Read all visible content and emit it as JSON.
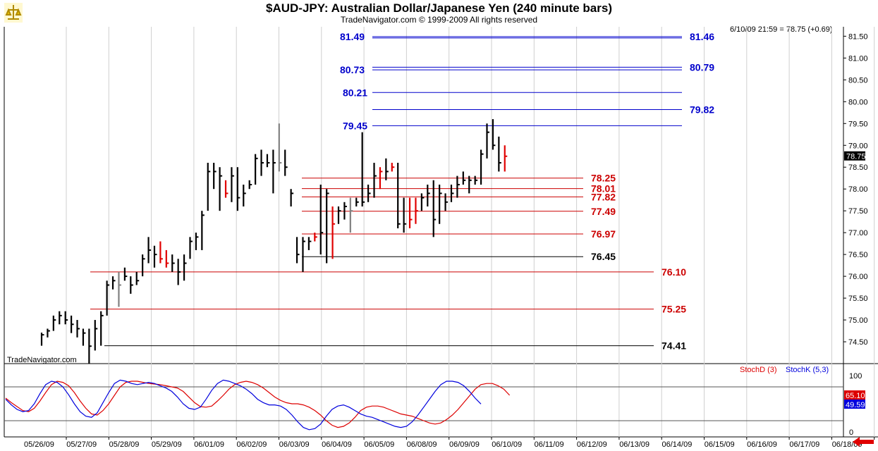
{
  "title": "$AUD-JPY:  Australian Dollar/Japanese Yen  (240 minute bars)",
  "copyright": "TradeNavigator.com © 1999-2009 All rights reserved",
  "last_readout": "6/10/09 21:59 = 78.75 (+0.69)",
  "watermark": "TradeNavigator.com",
  "colors": {
    "up_bar": "#000000",
    "down_bar": "#e00000",
    "neutral_bar": "#808080",
    "blue_level": "#0000cc",
    "red_level": "#cc0000",
    "black_level": "#000000",
    "stoch_d": "#dd0000",
    "stoch_k": "#0000dd"
  },
  "chart_data": [
    {
      "type": "ohlc",
      "title": "$AUD-JPY:  Australian Dollar/Japanese Yen  (240 minute bars)",
      "ylim": [
        74.1,
        81.8
      ],
      "y_ticks": [
        "74.50",
        "75.00",
        "75.50",
        "76.00",
        "76.50",
        "77.00",
        "77.50",
        "78.00",
        "78.50",
        "79.00",
        "79.50",
        "80.00",
        "80.50",
        "81.00",
        "81.50"
      ],
      "x_tick_labels": [
        "05/26/09",
        "05/27/09",
        "05/28/09",
        "05/29/09",
        "06/01/09",
        "06/02/09",
        "06/03/09",
        "06/04/09",
        "06/05/09",
        "06/08/09",
        "06/09/09",
        "06/10/09",
        "06/11/09",
        "06/12/09",
        "06/13/09",
        "06/14/09",
        "06/15/09",
        "06/16/09",
        "06/17/09",
        "06/18/09"
      ],
      "last_price_label": "78.75",
      "bars": [
        {
          "h": 74.71,
          "l": 74.41,
          "c": 74.66,
          "k": "up"
        },
        {
          "h": 74.8,
          "l": 74.6,
          "c": 74.75,
          "k": "up"
        },
        {
          "h": 75.1,
          "l": 74.75,
          "c": 75.0,
          "k": "up"
        },
        {
          "h": 75.2,
          "l": 74.9,
          "c": 75.1,
          "k": "up"
        },
        {
          "h": 75.2,
          "l": 74.9,
          "c": 75.0,
          "k": "up"
        },
        {
          "h": 75.1,
          "l": 74.7,
          "c": 74.9,
          "k": "up"
        },
        {
          "h": 75.0,
          "l": 74.6,
          "c": 74.8,
          "k": "up"
        },
        {
          "h": 74.8,
          "l": 74.41,
          "c": 74.7,
          "k": "up"
        },
        {
          "h": 74.8,
          "l": 74.0,
          "c": 74.4,
          "k": "up"
        },
        {
          "h": 75.0,
          "l": 74.3,
          "c": 74.8,
          "k": "up"
        },
        {
          "h": 75.2,
          "l": 74.41,
          "c": 75.1,
          "k": "up"
        },
        {
          "h": 75.9,
          "l": 75.1,
          "c": 75.8,
          "k": "up"
        },
        {
          "h": 76.0,
          "l": 75.7,
          "c": 75.9,
          "k": "up"
        },
        {
          "h": 76.1,
          "l": 75.3,
          "c": 75.8,
          "k": "neutral"
        },
        {
          "h": 76.2,
          "l": 75.9,
          "c": 76.0,
          "k": "up"
        },
        {
          "h": 76.0,
          "l": 75.6,
          "c": 75.8,
          "k": "up"
        },
        {
          "h": 76.1,
          "l": 75.8,
          "c": 75.9,
          "k": "up"
        },
        {
          "h": 76.5,
          "l": 76.0,
          "c": 76.4,
          "k": "up"
        },
        {
          "h": 76.9,
          "l": 76.3,
          "c": 76.6,
          "k": "up"
        },
        {
          "h": 76.7,
          "l": 76.2,
          "c": 76.5,
          "k": "up"
        },
        {
          "h": 76.8,
          "l": 76.3,
          "c": 76.4,
          "k": "down"
        },
        {
          "h": 76.6,
          "l": 76.2,
          "c": 76.3,
          "k": "down"
        },
        {
          "h": 76.5,
          "l": 76.1,
          "c": 76.3,
          "k": "up"
        },
        {
          "h": 76.4,
          "l": 75.8,
          "c": 76.1,
          "k": "up"
        },
        {
          "h": 76.5,
          "l": 75.9,
          "c": 76.3,
          "k": "up"
        },
        {
          "h": 76.9,
          "l": 76.4,
          "c": 76.8,
          "k": "up"
        },
        {
          "h": 77.0,
          "l": 76.6,
          "c": 76.9,
          "k": "up"
        },
        {
          "h": 77.5,
          "l": 76.6,
          "c": 77.4,
          "k": "up"
        },
        {
          "h": 78.6,
          "l": 77.5,
          "c": 78.4,
          "k": "up"
        },
        {
          "h": 78.6,
          "l": 78.0,
          "c": 78.4,
          "k": "up"
        },
        {
          "h": 78.5,
          "l": 77.5,
          "c": 78.3,
          "k": "up"
        },
        {
          "h": 78.2,
          "l": 77.8,
          "c": 77.9,
          "k": "down"
        },
        {
          "h": 78.5,
          "l": 77.7,
          "c": 78.3,
          "k": "up"
        },
        {
          "h": 78.5,
          "l": 77.5,
          "c": 77.8,
          "k": "up"
        },
        {
          "h": 78.1,
          "l": 77.6,
          "c": 77.9,
          "k": "up"
        },
        {
          "h": 78.2,
          "l": 78.0,
          "c": 78.1,
          "k": "up"
        },
        {
          "h": 78.8,
          "l": 78.1,
          "c": 78.7,
          "k": "up"
        },
        {
          "h": 78.9,
          "l": 78.3,
          "c": 78.6,
          "k": "up"
        },
        {
          "h": 78.8,
          "l": 78.5,
          "c": 78.6,
          "k": "up"
        },
        {
          "h": 78.9,
          "l": 77.9,
          "c": 78.6,
          "k": "up"
        },
        {
          "h": 79.5,
          "l": 78.4,
          "c": 78.6,
          "k": "neutral"
        },
        {
          "h": 78.9,
          "l": 78.3,
          "c": 78.5,
          "k": "up"
        },
        {
          "h": 78.0,
          "l": 77.6,
          "c": 77.9,
          "k": "up"
        },
        {
          "h": 76.9,
          "l": 76.3,
          "c": 76.5,
          "k": "up"
        },
        {
          "h": 76.9,
          "l": 76.1,
          "c": 76.8,
          "k": "up"
        },
        {
          "h": 76.9,
          "l": 76.6,
          "c": 76.8,
          "k": "up"
        },
        {
          "h": 77.0,
          "l": 76.8,
          "c": 76.9,
          "k": "down"
        },
        {
          "h": 78.1,
          "l": 76.5,
          "c": 77.0,
          "k": "up"
        },
        {
          "h": 78.0,
          "l": 76.3,
          "c": 77.9,
          "k": "up"
        },
        {
          "h": 77.6,
          "l": 76.4,
          "c": 77.2,
          "k": "down"
        },
        {
          "h": 77.6,
          "l": 77.2,
          "c": 77.5,
          "k": "up"
        },
        {
          "h": 77.7,
          "l": 77.3,
          "c": 77.6,
          "k": "up"
        },
        {
          "h": 77.8,
          "l": 77.0,
          "c": 77.5,
          "k": "neutral"
        },
        {
          "h": 77.8,
          "l": 77.6,
          "c": 77.7,
          "k": "up"
        },
        {
          "h": 79.3,
          "l": 77.6,
          "c": 77.7,
          "k": "up"
        },
        {
          "h": 78.1,
          "l": 77.7,
          "c": 77.9,
          "k": "up"
        },
        {
          "h": 78.6,
          "l": 77.8,
          "c": 78.3,
          "k": "up"
        },
        {
          "h": 78.5,
          "l": 78.0,
          "c": 78.4,
          "k": "down"
        },
        {
          "h": 78.7,
          "l": 78.2,
          "c": 78.4,
          "k": "up"
        },
        {
          "h": 78.6,
          "l": 78.4,
          "c": 78.5,
          "k": "down"
        },
        {
          "h": 78.6,
          "l": 77.1,
          "c": 77.2,
          "k": "up"
        },
        {
          "h": 77.8,
          "l": 77.0,
          "c": 77.2,
          "k": "up"
        },
        {
          "h": 77.8,
          "l": 77.1,
          "c": 77.3,
          "k": "down"
        },
        {
          "h": 77.8,
          "l": 77.2,
          "c": 77.5,
          "k": "down"
        },
        {
          "h": 77.9,
          "l": 77.5,
          "c": 77.8,
          "k": "up"
        },
        {
          "h": 78.1,
          "l": 77.6,
          "c": 77.9,
          "k": "up"
        },
        {
          "h": 78.2,
          "l": 76.9,
          "c": 77.3,
          "k": "up"
        },
        {
          "h": 78.1,
          "l": 77.2,
          "c": 77.9,
          "k": "up"
        },
        {
          "h": 77.9,
          "l": 77.5,
          "c": 77.7,
          "k": "up"
        },
        {
          "h": 78.1,
          "l": 77.7,
          "c": 77.9,
          "k": "up"
        },
        {
          "h": 78.3,
          "l": 77.8,
          "c": 78.1,
          "k": "up"
        },
        {
          "h": 78.4,
          "l": 78.1,
          "c": 78.2,
          "k": "up"
        },
        {
          "h": 78.3,
          "l": 77.9,
          "c": 78.2,
          "k": "up"
        },
        {
          "h": 78.3,
          "l": 78.1,
          "c": 78.2,
          "k": "up"
        },
        {
          "h": 78.9,
          "l": 78.1,
          "c": 78.8,
          "k": "up"
        },
        {
          "h": 79.5,
          "l": 78.7,
          "c": 79.3,
          "k": "up"
        },
        {
          "h": 79.6,
          "l": 78.9,
          "c": 79.0,
          "k": "up"
        },
        {
          "h": 79.2,
          "l": 78.4,
          "c": 78.6,
          "k": "up"
        },
        {
          "h": 79.0,
          "l": 78.4,
          "c": 78.75,
          "k": "down"
        }
      ],
      "levels": [
        {
          "value": 81.49,
          "label_left": "81.49",
          "label_right": "81.46",
          "color": "blue",
          "span": "wide"
        },
        {
          "value": 81.46,
          "label_left": "",
          "label_right": "",
          "color": "blue",
          "span": "wide"
        },
        {
          "value": 80.79,
          "label_left": "",
          "label_right": "80.79",
          "color": "blue",
          "span": "wide"
        },
        {
          "value": 80.73,
          "label_left": "80.73",
          "label_right": "",
          "color": "blue",
          "span": "wide"
        },
        {
          "value": 80.21,
          "label_left": "80.21",
          "label_right": "",
          "color": "blue",
          "span": "mid"
        },
        {
          "value": 79.82,
          "label_left": "",
          "label_right": "79.82",
          "color": "blue",
          "span": "mid"
        },
        {
          "value": 79.45,
          "label_left": "79.45",
          "label_right": "",
          "color": "blue",
          "span": "mid"
        },
        {
          "value": 78.25,
          "label_left": "",
          "label_right": "78.25",
          "color": "red",
          "span": "narrow"
        },
        {
          "value": 78.01,
          "label_left": "",
          "label_right": "78.01",
          "color": "red",
          "span": "narrow"
        },
        {
          "value": 77.82,
          "label_left": "",
          "label_right": "77.82",
          "color": "red",
          "span": "narrow"
        },
        {
          "value": 77.49,
          "label_left": "",
          "label_right": "77.49",
          "color": "red",
          "span": "narrow"
        },
        {
          "value": 76.97,
          "label_left": "",
          "label_right": "76.97",
          "color": "red",
          "span": "narrow"
        },
        {
          "value": 76.45,
          "label_left": "",
          "label_right": "76.45",
          "color": "black",
          "span": "narrow"
        },
        {
          "value": 76.1,
          "label_left": "",
          "label_right": "76.10",
          "color": "red",
          "span": "long"
        },
        {
          "value": 75.25,
          "label_left": "",
          "label_right": "75.25",
          "color": "red",
          "span": "long"
        },
        {
          "value": 74.41,
          "label_left": "",
          "label_right": "74.41",
          "color": "black",
          "span": "long2"
        }
      ]
    },
    {
      "type": "line",
      "ylim": [
        -10,
        110
      ],
      "y_ticks": [
        "0",
        "100"
      ],
      "reference_lines": [
        20,
        80
      ],
      "series": [
        {
          "name": "StochD (3)",
          "color": "#dd0000",
          "last_label": "65.10",
          "values": [
            60,
            52,
            45,
            38,
            36,
            42,
            55,
            70,
            84,
            90,
            88,
            82,
            70,
            55,
            42,
            32,
            30,
            38,
            50,
            65,
            80,
            88,
            90,
            90,
            88,
            86,
            85,
            84,
            82,
            80,
            78,
            72,
            62,
            52,
            45,
            44,
            46,
            55,
            65,
            76,
            84,
            88,
            90,
            88,
            84,
            78,
            70,
            62,
            56,
            52,
            50,
            50,
            48,
            44,
            38,
            30,
            20,
            12,
            8,
            10,
            16,
            26,
            38,
            44,
            46,
            46,
            44,
            40,
            36,
            32,
            30,
            28,
            24,
            20,
            16,
            14,
            16,
            22,
            30,
            40,
            52,
            64,
            76,
            84,
            86,
            86,
            82,
            76,
            65.1
          ]
        },
        {
          "name": "StochK (5,3)",
          "color": "#0000dd",
          "last_label": "49.59",
          "values": [
            58,
            48,
            40,
            36,
            38,
            50,
            68,
            84,
            90,
            88,
            80,
            66,
            50,
            36,
            28,
            26,
            34,
            52,
            70,
            86,
            92,
            90,
            86,
            84,
            86,
            88,
            86,
            82,
            78,
            72,
            62,
            50,
            42,
            40,
            44,
            58,
            74,
            86,
            92,
            90,
            86,
            82,
            76,
            68,
            58,
            52,
            48,
            48,
            46,
            40,
            30,
            18,
            8,
            4,
            6,
            14,
            28,
            40,
            46,
            48,
            44,
            38,
            32,
            28,
            26,
            22,
            18,
            14,
            10,
            8,
            10,
            18,
            30,
            44,
            58,
            72,
            84,
            90,
            90,
            88,
            82,
            72,
            60,
            49.59
          ]
        }
      ]
    }
  ]
}
